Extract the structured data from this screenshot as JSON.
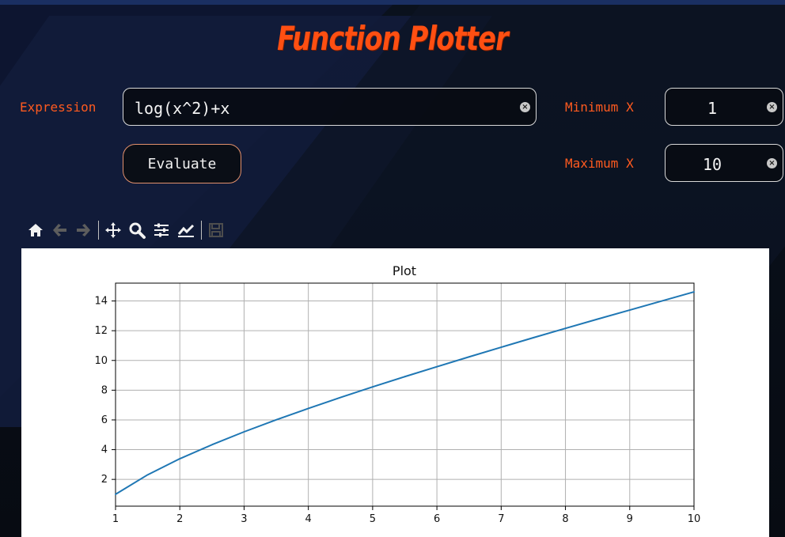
{
  "app": {
    "title": "Function Plotter"
  },
  "form": {
    "expression_label": "Expression",
    "expression_value": "log(x^2)+x",
    "min_x_label": "Minimum X",
    "min_x_value": "1",
    "max_x_label": "Maximum X",
    "max_x_value": "10",
    "evaluate_label": "Evaluate",
    "clear_icon_name": "clear-input-icon",
    "accent_color": "#ff5a1f"
  },
  "toolbar": {
    "icons": [
      "home-icon",
      "back-arrow-icon",
      "forward-arrow-icon",
      "pan-move-icon",
      "zoom-icon",
      "configure-subplots-icon",
      "edit-axis-icon",
      "save-icon"
    ]
  },
  "chart_data": {
    "type": "line",
    "title": "Plot",
    "xlabel": "",
    "ylabel": "",
    "xlim": [
      1,
      10
    ],
    "ylim": [
      0.2,
      15.2
    ],
    "xticks": [
      1,
      2,
      3,
      4,
      5,
      6,
      7,
      8,
      9,
      10
    ],
    "yticks": [
      2,
      4,
      6,
      8,
      10,
      12,
      14
    ],
    "grid": true,
    "series": [
      {
        "color": "#1f77b4",
        "x": [
          1,
          1.5,
          2,
          2.5,
          3,
          3.5,
          4,
          4.5,
          5,
          5.5,
          6,
          6.5,
          7,
          7.5,
          8,
          8.5,
          9,
          9.5,
          10
        ],
        "y": [
          1.0,
          2.31,
          3.39,
          4.33,
          5.2,
          6.01,
          6.77,
          7.51,
          8.22,
          8.91,
          9.58,
          10.24,
          10.89,
          11.53,
          12.16,
          12.78,
          13.39,
          14.0,
          14.61
        ]
      }
    ]
  }
}
